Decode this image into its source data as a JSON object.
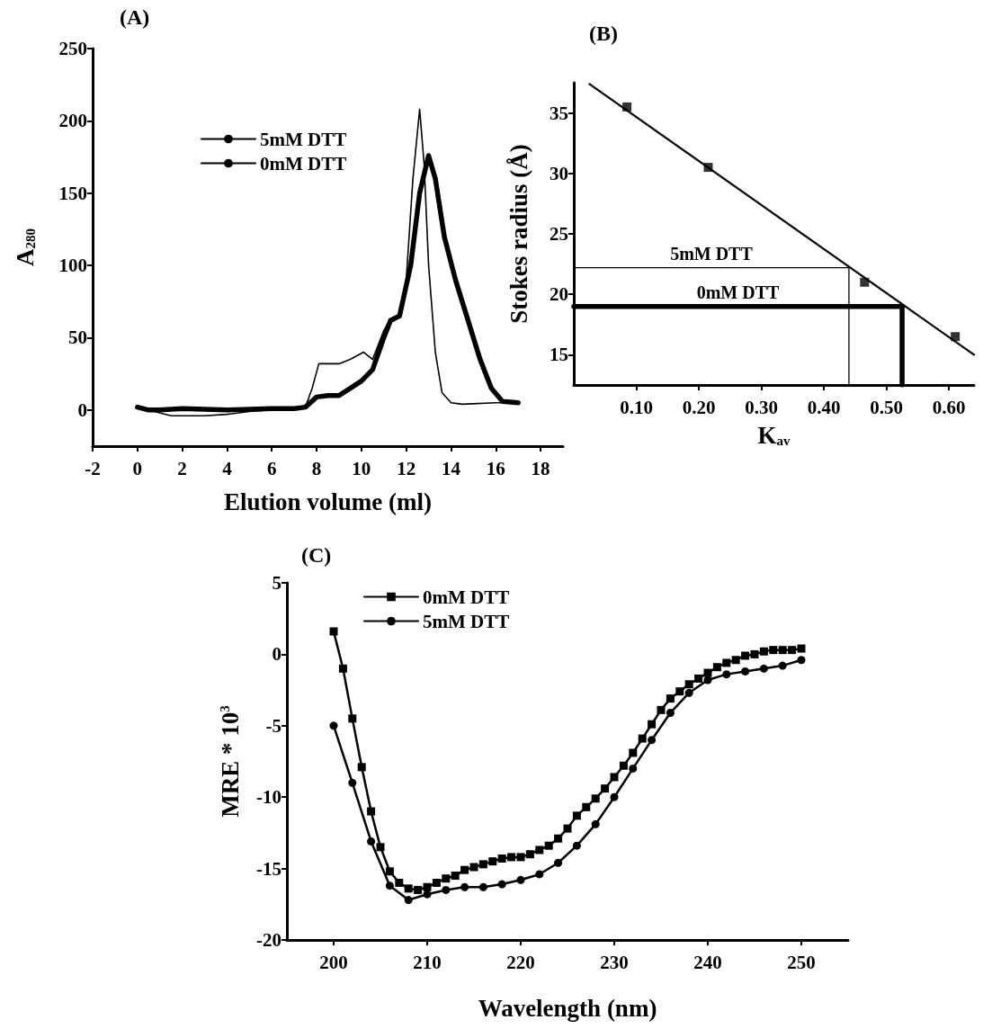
{
  "chart_data": [
    {
      "type": "line",
      "title": "(A)",
      "xlabel": "Elution volume (ml)",
      "ylabel": "A$_{280}$",
      "xlim": [
        -2,
        19
      ],
      "xticks": [
        -2,
        0,
        2,
        4,
        6,
        8,
        10,
        12,
        14,
        16,
        18
      ],
      "ylim": [
        -25,
        250
      ],
      "yticks": [
        0,
        50,
        100,
        150,
        200,
        250
      ],
      "grid": false,
      "legend": "top left",
      "marker": "none",
      "line_style": "solid",
      "series": [
        {
          "name": "5mM DTT",
          "color": "#000000",
          "x": [
            0,
            0.5,
            1,
            1.5,
            3,
            4,
            5,
            6,
            7,
            7.5,
            7.8,
            8.1,
            9,
            9.5,
            10.1,
            10.5,
            11,
            11.3,
            11.7,
            12,
            12.3,
            12.6,
            12.8,
            13,
            13.3,
            13.6,
            14,
            14.5,
            16,
            17
          ],
          "values": [
            3,
            0,
            -2,
            -4,
            -4,
            -3,
            -1,
            0,
            1,
            2,
            15,
            32,
            32,
            35,
            40,
            35,
            55,
            63,
            65,
            90,
            160,
            208,
            170,
            100,
            40,
            12,
            5,
            4,
            5,
            5
          ]
        },
        {
          "name": "0mM DTT",
          "color": "#000000",
          "x": [
            0,
            0.5,
            1,
            2,
            4,
            6,
            7,
            7.5,
            8,
            8.5,
            9,
            10,
            10.5,
            11,
            11.3,
            11.7,
            12.2,
            12.6,
            13,
            13.3,
            13.7,
            14.2,
            14.8,
            15.3,
            15.8,
            16.3,
            17
          ],
          "values": [
            2,
            0,
            0,
            1,
            0,
            1,
            1,
            2,
            9,
            10,
            10,
            20,
            28,
            50,
            62,
            65,
            100,
            150,
            176,
            160,
            120,
            90,
            60,
            35,
            15,
            6,
            5
          ]
        }
      ]
    },
    {
      "type": "scatter",
      "title": "(B)",
      "xlabel": "K$_{av}$",
      "ylabel": "Stokes radius (Å)",
      "xlim": [
        0,
        0.64
      ],
      "xticks": [
        {
          "value": 0.1,
          "label": "0.10"
        },
        {
          "value": 0.2,
          "label": "0.20"
        },
        {
          "value": 0.3,
          "label": "0.30"
        },
        {
          "value": 0.4,
          "label": "0.40"
        },
        {
          "value": 0.5,
          "label": "0.50"
        },
        {
          "value": 0.6,
          "label": "0.60"
        }
      ],
      "ylim": [
        12.5,
        37.5
      ],
      "yticks": [
        15,
        20,
        25,
        30,
        35
      ],
      "grid": false,
      "legend": false,
      "line_style": "solid",
      "series": [
        {
          "color": "#000000",
          "marker": "square",
          "x": [
            0.085,
            0.215,
            0.465,
            0.61
          ],
          "values": [
            35.5,
            30.5,
            21,
            16.5
          ]
        },
        {
          "type": "line",
          "color": "#000000",
          "marker": "none",
          "x": [
            0.025,
            0.64
          ],
          "values": [
            37.4,
            15
          ]
        },
        {
          "type": "line",
          "name": "5mM DTT",
          "color": "#000000",
          "marker": "none",
          "x": [
            0,
            0.44,
            0.44
          ],
          "values": [
            22.2,
            22.2,
            12.5
          ]
        },
        {
          "type": "line",
          "name": "0mM DTT",
          "color": "#000000",
          "marker": "none",
          "x": [
            0,
            0.525,
            0.525
          ],
          "values": [
            19,
            19,
            12.5
          ]
        }
      ]
    },
    {
      "type": "line",
      "title": "(C)",
      "xlabel": "Wavelength (nm)",
      "ylabel": "MRE * 10$^{3}$",
      "xlim": [
        195,
        255
      ],
      "xticks": [
        200,
        210,
        220,
        230,
        240,
        250
      ],
      "ylim": [
        -20,
        5
      ],
      "yticks": [
        -20,
        -15,
        -10,
        -5,
        0,
        5
      ],
      "grid": false,
      "legend": "top left",
      "line_style": "solid",
      "series": [
        {
          "name": "0mM DTT",
          "color": "#000000",
          "marker": "square",
          "x": [
            200,
            201,
            202,
            203,
            204,
            205,
            206,
            207,
            208,
            209,
            210,
            211,
            212,
            213,
            214,
            215,
            216,
            217,
            218,
            219,
            220,
            221,
            222,
            223,
            224,
            225,
            226,
            227,
            228,
            229,
            230,
            231,
            232,
            233,
            234,
            235,
            236,
            237,
            238,
            239,
            240,
            241,
            242,
            243,
            244,
            245,
            246,
            247,
            248,
            249,
            250
          ],
          "values": [
            1.6,
            -1.0,
            -4.5,
            -7.9,
            -11.0,
            -13.5,
            -15.2,
            -16.0,
            -16.4,
            -16.5,
            -16.3,
            -16.0,
            -15.7,
            -15.5,
            -15.1,
            -14.9,
            -14.7,
            -14.5,
            -14.3,
            -14.2,
            -14.2,
            -14.0,
            -13.7,
            -13.4,
            -12.9,
            -12.2,
            -11.3,
            -10.7,
            -10.1,
            -9.4,
            -8.6,
            -7.8,
            -6.9,
            -5.9,
            -4.9,
            -3.9,
            -3.1,
            -2.6,
            -2.1,
            -1.7,
            -1.3,
            -0.9,
            -0.6,
            -0.4,
            -0.1,
            0,
            0.2,
            0.3,
            0.3,
            0.3,
            0.4
          ]
        },
        {
          "name": "5mM DTT",
          "color": "#000000",
          "marker": "circle",
          "x": [
            200,
            202,
            204,
            206,
            208,
            210,
            212,
            214,
            216,
            218,
            220,
            222,
            224,
            226,
            228,
            230,
            232,
            234,
            236,
            238,
            240,
            242,
            244,
            246,
            248,
            250
          ],
          "values": [
            -5.0,
            -9.0,
            -13.1,
            -16.2,
            -17.2,
            -16.8,
            -16.5,
            -16.3,
            -16.3,
            -16.1,
            -15.8,
            -15.4,
            -14.6,
            -13.4,
            -11.9,
            -10.0,
            -8.0,
            -6.0,
            -4.1,
            -2.7,
            -1.8,
            -1.4,
            -1.2,
            -1.0,
            -0.8,
            -0.4
          ]
        }
      ]
    }
  ]
}
